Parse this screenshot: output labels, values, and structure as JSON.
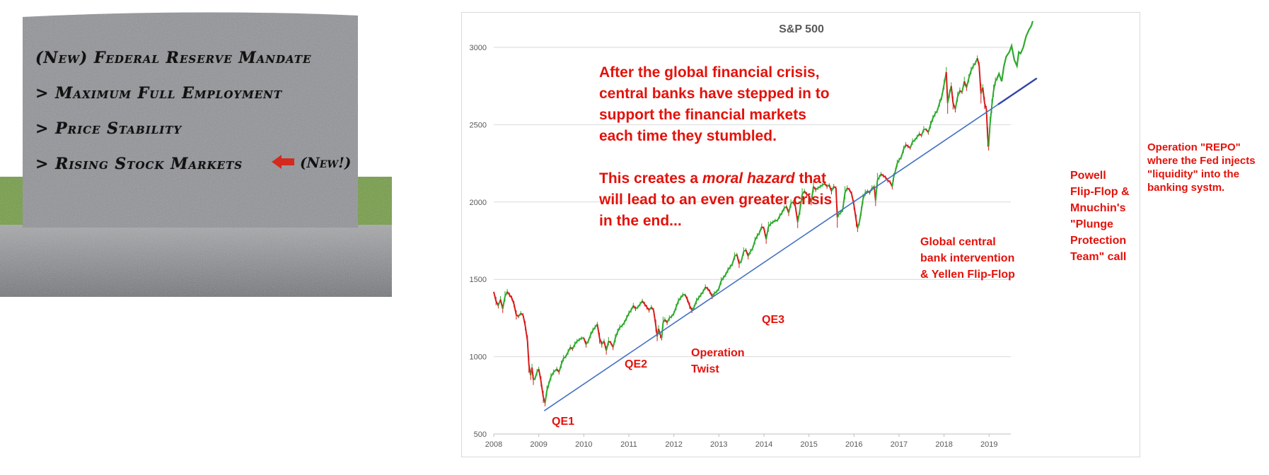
{
  "tombstone": {
    "lines": [
      "(New) Federal Reserve Mandate",
      "> Maximum Full Employment",
      "> Price Stability",
      "> Rising Stock Markets"
    ],
    "new_tag": "(New!)",
    "colors": {
      "stone": "#8e9095",
      "grass": "#6f9a3c",
      "arrow": "#d42a1e"
    },
    "arrow_icon": "left-arrow-icon"
  },
  "chart_data": {
    "type": "line",
    "title": "S&P 500",
    "xlabel": "",
    "ylabel": "",
    "x_ticks": [
      "2008",
      "2009",
      "2010",
      "2011",
      "2012",
      "2013",
      "2014",
      "2015",
      "2016",
      "2017",
      "2018",
      "2019"
    ],
    "y_ticks": [
      500,
      1000,
      1500,
      2000,
      2500,
      3000
    ],
    "xlim": [
      2008.0,
      2019.2
    ],
    "ylim": [
      500,
      3000
    ],
    "grid": "horizontal",
    "colors": {
      "up": "#2eaa2e",
      "down": "#d81b1b",
      "trend": "#4472c4",
      "annotation": "#e3120b"
    },
    "series": [
      {
        "values": [
          [
            2008.0,
            1420
          ],
          [
            2008.05,
            1360
          ],
          [
            2008.1,
            1330
          ],
          [
            2008.15,
            1370
          ],
          [
            2008.2,
            1310
          ],
          [
            2008.25,
            1390
          ],
          [
            2008.3,
            1420
          ],
          [
            2008.35,
            1400
          ],
          [
            2008.4,
            1380
          ],
          [
            2008.45,
            1340
          ],
          [
            2008.5,
            1270
          ],
          [
            2008.55,
            1260
          ],
          [
            2008.6,
            1280
          ],
          [
            2008.65,
            1270
          ],
          [
            2008.7,
            1200
          ],
          [
            2008.75,
            1100
          ],
          [
            2008.78,
            950
          ],
          [
            2008.82,
            880
          ],
          [
            2008.85,
            930
          ],
          [
            2008.88,
            850
          ],
          [
            2008.92,
            860
          ],
          [
            2008.96,
            900
          ],
          [
            2009.0,
            920
          ],
          [
            2009.05,
            840
          ],
          [
            2009.1,
            740
          ],
          [
            2009.14,
            700
          ],
          [
            2009.18,
            780
          ],
          [
            2009.22,
            820
          ],
          [
            2009.27,
            870
          ],
          [
            2009.33,
            900
          ],
          [
            2009.4,
            920
          ],
          [
            2009.45,
            900
          ],
          [
            2009.5,
            950
          ],
          [
            2009.55,
            990
          ],
          [
            2009.6,
            1000
          ],
          [
            2009.65,
            1030
          ],
          [
            2009.7,
            1060
          ],
          [
            2009.75,
            1050
          ],
          [
            2009.8,
            1080
          ],
          [
            2009.85,
            1100
          ],
          [
            2009.9,
            1110
          ],
          [
            2009.95,
            1120
          ],
          [
            2010.0,
            1120
          ],
          [
            2010.05,
            1080
          ],
          [
            2010.1,
            1100
          ],
          [
            2010.15,
            1140
          ],
          [
            2010.2,
            1170
          ],
          [
            2010.25,
            1190
          ],
          [
            2010.3,
            1210
          ],
          [
            2010.35,
            1120
          ],
          [
            2010.4,
            1080
          ],
          [
            2010.45,
            1100
          ],
          [
            2010.5,
            1040
          ],
          [
            2010.55,
            1100
          ],
          [
            2010.6,
            1090
          ],
          [
            2010.65,
            1060
          ],
          [
            2010.7,
            1120
          ],
          [
            2010.75,
            1160
          ],
          [
            2010.8,
            1190
          ],
          [
            2010.85,
            1200
          ],
          [
            2010.9,
            1220
          ],
          [
            2010.95,
            1250
          ],
          [
            2011.0,
            1280
          ],
          [
            2011.05,
            1300
          ],
          [
            2011.1,
            1330
          ],
          [
            2011.15,
            1310
          ],
          [
            2011.2,
            1320
          ],
          [
            2011.25,
            1340
          ],
          [
            2011.3,
            1360
          ],
          [
            2011.35,
            1340
          ],
          [
            2011.4,
            1320
          ],
          [
            2011.45,
            1300
          ],
          [
            2011.5,
            1320
          ],
          [
            2011.55,
            1300
          ],
          [
            2011.6,
            1200
          ],
          [
            2011.63,
            1130
          ],
          [
            2011.66,
            1180
          ],
          [
            2011.7,
            1140
          ],
          [
            2011.73,
            1120
          ],
          [
            2011.76,
            1220
          ],
          [
            2011.8,
            1240
          ],
          [
            2011.85,
            1220
          ],
          [
            2011.9,
            1250
          ],
          [
            2011.95,
            1260
          ],
          [
            2012.0,
            1280
          ],
          [
            2012.05,
            1320
          ],
          [
            2012.1,
            1360
          ],
          [
            2012.15,
            1380
          ],
          [
            2012.2,
            1400
          ],
          [
            2012.25,
            1400
          ],
          [
            2012.3,
            1370
          ],
          [
            2012.35,
            1330
          ],
          [
            2012.4,
            1300
          ],
          [
            2012.45,
            1320
          ],
          [
            2012.5,
            1360
          ],
          [
            2012.55,
            1380
          ],
          [
            2012.6,
            1400
          ],
          [
            2012.65,
            1420
          ],
          [
            2012.7,
            1450
          ],
          [
            2012.75,
            1440
          ],
          [
            2012.8,
            1420
          ],
          [
            2012.85,
            1390
          ],
          [
            2012.9,
            1410
          ],
          [
            2012.95,
            1420
          ],
          [
            2013.0,
            1440
          ],
          [
            2013.05,
            1490
          ],
          [
            2013.1,
            1510
          ],
          [
            2013.15,
            1530
          ],
          [
            2013.2,
            1560
          ],
          [
            2013.25,
            1580
          ],
          [
            2013.3,
            1600
          ],
          [
            2013.35,
            1650
          ],
          [
            2013.4,
            1660
          ],
          [
            2013.45,
            1600
          ],
          [
            2013.5,
            1620
          ],
          [
            2013.55,
            1680
          ],
          [
            2013.6,
            1690
          ],
          [
            2013.65,
            1650
          ],
          [
            2013.7,
            1680
          ],
          [
            2013.75,
            1700
          ],
          [
            2013.8,
            1750
          ],
          [
            2013.85,
            1780
          ],
          [
            2013.9,
            1800
          ],
          [
            2013.95,
            1840
          ],
          [
            2014.0,
            1830
          ],
          [
            2014.05,
            1760
          ],
          [
            2014.1,
            1840
          ],
          [
            2014.15,
            1860
          ],
          [
            2014.2,
            1870
          ],
          [
            2014.25,
            1880
          ],
          [
            2014.3,
            1880
          ],
          [
            2014.35,
            1910
          ],
          [
            2014.4,
            1930
          ],
          [
            2014.45,
            1960
          ],
          [
            2014.5,
            1970
          ],
          [
            2014.55,
            1930
          ],
          [
            2014.6,
            1990
          ],
          [
            2014.65,
            2000
          ],
          [
            2014.7,
            1970
          ],
          [
            2014.75,
            1870
          ],
          [
            2014.8,
            1950
          ],
          [
            2014.85,
            2050
          ],
          [
            2014.9,
            2070
          ],
          [
            2014.95,
            2050
          ],
          [
            2015.0,
            2040
          ],
          [
            2015.05,
            2000
          ],
          [
            2015.1,
            2100
          ],
          [
            2015.15,
            2080
          ],
          [
            2015.2,
            2090
          ],
          [
            2015.25,
            2100
          ],
          [
            2015.3,
            2110
          ],
          [
            2015.35,
            2120
          ],
          [
            2015.4,
            2100
          ],
          [
            2015.45,
            2110
          ],
          [
            2015.5,
            2070
          ],
          [
            2015.55,
            2100
          ],
          [
            2015.6,
            2090
          ],
          [
            2015.63,
            1900
          ],
          [
            2015.66,
            1920
          ],
          [
            2015.7,
            1930
          ],
          [
            2015.75,
            1950
          ],
          [
            2015.8,
            2060
          ],
          [
            2015.85,
            2090
          ],
          [
            2015.9,
            2080
          ],
          [
            2015.95,
            2050
          ],
          [
            2016.0,
            1980
          ],
          [
            2016.05,
            1880
          ],
          [
            2016.08,
            1830
          ],
          [
            2016.12,
            1870
          ],
          [
            2016.16,
            1940
          ],
          [
            2016.2,
            2020
          ],
          [
            2016.25,
            2060
          ],
          [
            2016.3,
            2070
          ],
          [
            2016.35,
            2060
          ],
          [
            2016.4,
            2090
          ],
          [
            2016.45,
            2100
          ],
          [
            2016.48,
            2010
          ],
          [
            2016.52,
            2140
          ],
          [
            2016.56,
            2160
          ],
          [
            2016.6,
            2180
          ],
          [
            2016.65,
            2170
          ],
          [
            2016.7,
            2160
          ],
          [
            2016.75,
            2140
          ],
          [
            2016.8,
            2130
          ],
          [
            2016.85,
            2100
          ],
          [
            2016.88,
            2160
          ],
          [
            2016.92,
            2200
          ],
          [
            2016.96,
            2250
          ],
          [
            2017.0,
            2270
          ],
          [
            2017.05,
            2290
          ],
          [
            2017.1,
            2340
          ],
          [
            2017.15,
            2370
          ],
          [
            2017.2,
            2360
          ],
          [
            2017.25,
            2350
          ],
          [
            2017.3,
            2390
          ],
          [
            2017.35,
            2400
          ],
          [
            2017.4,
            2420
          ],
          [
            2017.45,
            2440
          ],
          [
            2017.5,
            2430
          ],
          [
            2017.55,
            2470
          ],
          [
            2017.6,
            2470
          ],
          [
            2017.65,
            2450
          ],
          [
            2017.7,
            2500
          ],
          [
            2017.75,
            2540
          ],
          [
            2017.8,
            2570
          ],
          [
            2017.85,
            2590
          ],
          [
            2017.9,
            2640
          ],
          [
            2017.95,
            2680
          ],
          [
            2018.0,
            2760
          ],
          [
            2018.05,
            2840
          ],
          [
            2018.08,
            2640
          ],
          [
            2018.12,
            2700
          ],
          [
            2018.16,
            2750
          ],
          [
            2018.2,
            2640
          ],
          [
            2018.25,
            2600
          ],
          [
            2018.3,
            2680
          ],
          [
            2018.35,
            2720
          ],
          [
            2018.4,
            2710
          ],
          [
            2018.45,
            2780
          ],
          [
            2018.5,
            2740
          ],
          [
            2018.55,
            2800
          ],
          [
            2018.6,
            2850
          ],
          [
            2018.65,
            2880
          ],
          [
            2018.7,
            2900
          ],
          [
            2018.74,
            2930
          ],
          [
            2018.78,
            2880
          ],
          [
            2018.82,
            2700
          ],
          [
            2018.86,
            2740
          ],
          [
            2018.9,
            2640
          ],
          [
            2018.94,
            2600
          ],
          [
            2018.97,
            2420
          ],
          [
            2018.99,
            2360
          ],
          [
            2019.02,
            2500
          ],
          [
            2019.06,
            2620
          ],
          [
            2019.1,
            2720
          ],
          [
            2019.14,
            2780
          ],
          [
            2019.18,
            2800
          ]
        ]
      }
    ],
    "extension": [
      [
        2019.18,
        2800
      ],
      [
        2019.22,
        2830
      ],
      [
        2019.28,
        2780
      ],
      [
        2019.33,
        2880
      ],
      [
        2019.38,
        2940
      ],
      [
        2019.45,
        2970
      ],
      [
        2019.5,
        3010
      ],
      [
        2019.56,
        2920
      ],
      [
        2019.62,
        2880
      ],
      [
        2019.66,
        2970
      ],
      [
        2019.7,
        2960
      ],
      [
        2019.76,
        3000
      ],
      [
        2019.82,
        3070
      ],
      [
        2019.88,
        3110
      ],
      [
        2019.94,
        3140
      ],
      [
        2019.97,
        3170
      ]
    ],
    "trend_line": [
      [
        2009.12,
        650
      ],
      [
        2020.06,
        2800
      ]
    ],
    "annotations": {
      "main_text": {
        "p1": [
          "After the global financial crisis,",
          "central banks have stepped in to",
          "support the financial markets",
          "each time they stumbled."
        ],
        "p2_line1_before": "This creates a ",
        "p2_line1_em": "moral hazard",
        "p2_line1_after": " that",
        "p2_rest": [
          "will lead to an even greater crisis",
          "in the end..."
        ]
      },
      "qe1": "QE1",
      "qe2": "QE2",
      "twist": [
        "Operation",
        "Twist"
      ],
      "qe3": "QE3",
      "global": [
        "Global central",
        "bank intervention",
        "& Yellen Flip-Flop"
      ],
      "powell": [
        "Powell",
        "Flip-Flop &",
        "Mnuchin's",
        "\"Plunge",
        "Protection",
        "Team\" call"
      ],
      "repo": [
        "Operation \"REPO\"",
        "where the Fed injects",
        "\"liquidity\" into the",
        "banking systm."
      ]
    }
  }
}
